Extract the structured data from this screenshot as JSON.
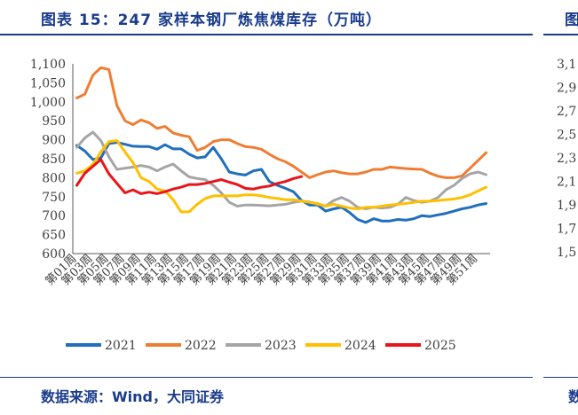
{
  "header": {
    "title": "图表 15：247 家样本钢厂炼焦煤库存（万吨）",
    "right_title_fragment": "图"
  },
  "footer": {
    "source": "数据来源：Wind，大同证券",
    "right_source_fragment": "数"
  },
  "right_panel": {
    "y_tick_labels": [
      "3,1",
      "2,9",
      "2,7",
      "2,5",
      "2,3",
      "2,1",
      "1,9",
      "1,7",
      "1,5"
    ]
  },
  "chart_data": {
    "type": "line",
    "title": "247 家样本钢厂炼焦煤库存（万吨）",
    "ylim": [
      600,
      1100
    ],
    "y_ticks": [
      600,
      650,
      700,
      750,
      800,
      850,
      900,
      950,
      1000,
      1050,
      1100
    ],
    "y_tick_labels": [
      "600",
      "650",
      "700",
      "750",
      "800",
      "850",
      "900",
      "950",
      "1,000",
      "1,050",
      "1,100"
    ],
    "grid": false,
    "legend_position": "bottom",
    "x_tick_labels": [
      "第01周",
      "第03周",
      "第05周",
      "第07周",
      "第09周",
      "第11周",
      "第13周",
      "第15周",
      "第17周",
      "第19周",
      "第21周",
      "第23周",
      "第25周",
      "第27周",
      "第29周",
      "第31周",
      "第33周",
      "第35周",
      "第37周",
      "第39周",
      "第41周",
      "第43周",
      "第45周",
      "第47周",
      "第49周",
      "第51周"
    ],
    "x_count": 52,
    "series": [
      {
        "name": "2021",
        "color": "#1f6fbd",
        "values": [
          885,
          870,
          848,
          852,
          890,
          893,
          888,
          883,
          882,
          882,
          875,
          887,
          876,
          876,
          862,
          852,
          855,
          880,
          850,
          815,
          810,
          807,
          818,
          822,
          790,
          780,
          772,
          763,
          740,
          728,
          728,
          712,
          718,
          722,
          708,
          690,
          682,
          692,
          686,
          686,
          690,
          688,
          692,
          700,
          698,
          702,
          706,
          712,
          718,
          722,
          728,
          732
        ]
      },
      {
        "name": "2022",
        "color": "#ef7d31",
        "values": [
          1010,
          1020,
          1070,
          1090,
          1085,
          990,
          950,
          940,
          952,
          945,
          930,
          935,
          918,
          912,
          908,
          872,
          880,
          895,
          900,
          900,
          890,
          882,
          880,
          875,
          862,
          850,
          842,
          830,
          815,
          800,
          808,
          815,
          818,
          813,
          810,
          810,
          815,
          822,
          822,
          828,
          826,
          824,
          823,
          822,
          812,
          804,
          800,
          800,
          805,
          825,
          845,
          866
        ]
      },
      {
        "name": "2023",
        "color": "#a5a5a5",
        "values": [
          880,
          905,
          920,
          898,
          855,
          822,
          825,
          828,
          832,
          828,
          818,
          828,
          836,
          818,
          802,
          798,
          795,
          780,
          760,
          735,
          725,
          728,
          728,
          727,
          726,
          728,
          730,
          735,
          738,
          736,
          730,
          725,
          740,
          748,
          738,
          722,
          718,
          722,
          720,
          722,
          730,
          748,
          740,
          735,
          738,
          748,
          768,
          780,
          798,
          810,
          815,
          808
        ]
      },
      {
        "name": "2024",
        "color": "#ffc000",
        "values": [
          812,
          818,
          835,
          868,
          895,
          898,
          868,
          840,
          800,
          790,
          770,
          765,
          742,
          710,
          710,
          730,
          745,
          752,
          752,
          752,
          752,
          755,
          755,
          752,
          748,
          745,
          742,
          742,
          738,
          735,
          732,
          725,
          730,
          725,
          720,
          718,
          722,
          722,
          725,
          728,
          730,
          732,
          735,
          738,
          738,
          740,
          742,
          744,
          748,
          755,
          765,
          775
        ]
      },
      {
        "name": "2025",
        "color": "#e8151b",
        "values": [
          780,
          812,
          830,
          848,
          810,
          785,
          760,
          768,
          758,
          762,
          758,
          763,
          770,
          775,
          782,
          782,
          785,
          790,
          795,
          788,
          782,
          772,
          770,
          775,
          778,
          785,
          790,
          798,
          803,
          null,
          null,
          null,
          null,
          null,
          null,
          null,
          null,
          null,
          null,
          null,
          null,
          null,
          null,
          null,
          null,
          null,
          null,
          null,
          null,
          null,
          null,
          null
        ]
      }
    ]
  }
}
